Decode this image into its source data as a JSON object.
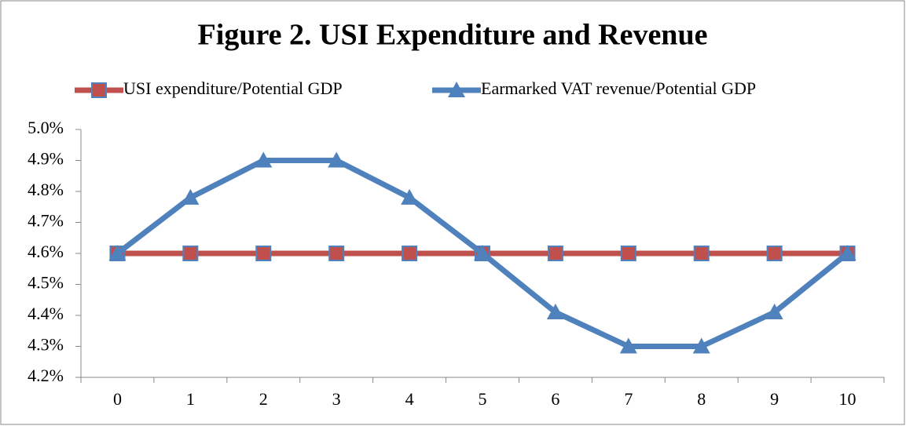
{
  "chart_data": {
    "type": "line",
    "title": "Figure 2. USI Expenditure and Revenue",
    "categories": [
      "0",
      "1",
      "2",
      "3",
      "4",
      "5",
      "6",
      "7",
      "8",
      "9",
      "10"
    ],
    "series": [
      {
        "name": "USI expenditure/Potential GDP",
        "color": "#c0504d",
        "marker": "square",
        "values": [
          4.6,
          4.6,
          4.6,
          4.6,
          4.6,
          4.6,
          4.6,
          4.6,
          4.6,
          4.6,
          4.6
        ]
      },
      {
        "name": "Earmarked VAT revenue/Potential GDP",
        "color": "#4f81bd",
        "marker": "triangle",
        "values": [
          4.6,
          4.78,
          4.9,
          4.9,
          4.78,
          4.6,
          4.41,
          4.3,
          4.3,
          4.41,
          4.6
        ]
      }
    ],
    "ylim": [
      4.2,
      5.0
    ],
    "yticks": [
      {
        "value": 4.2,
        "label": "4.2%"
      },
      {
        "value": 4.3,
        "label": "4.3%"
      },
      {
        "value": 4.4,
        "label": "4.4%"
      },
      {
        "value": 4.5,
        "label": "4.5%"
      },
      {
        "value": 4.6,
        "label": "4.6%"
      },
      {
        "value": 4.7,
        "label": "4.7%"
      },
      {
        "value": 4.8,
        "label": "4.8%"
      },
      {
        "value": 4.9,
        "label": "4.9%"
      },
      {
        "value": 5.0,
        "label": "5.0%"
      }
    ],
    "legend": "top",
    "grid": false
  }
}
